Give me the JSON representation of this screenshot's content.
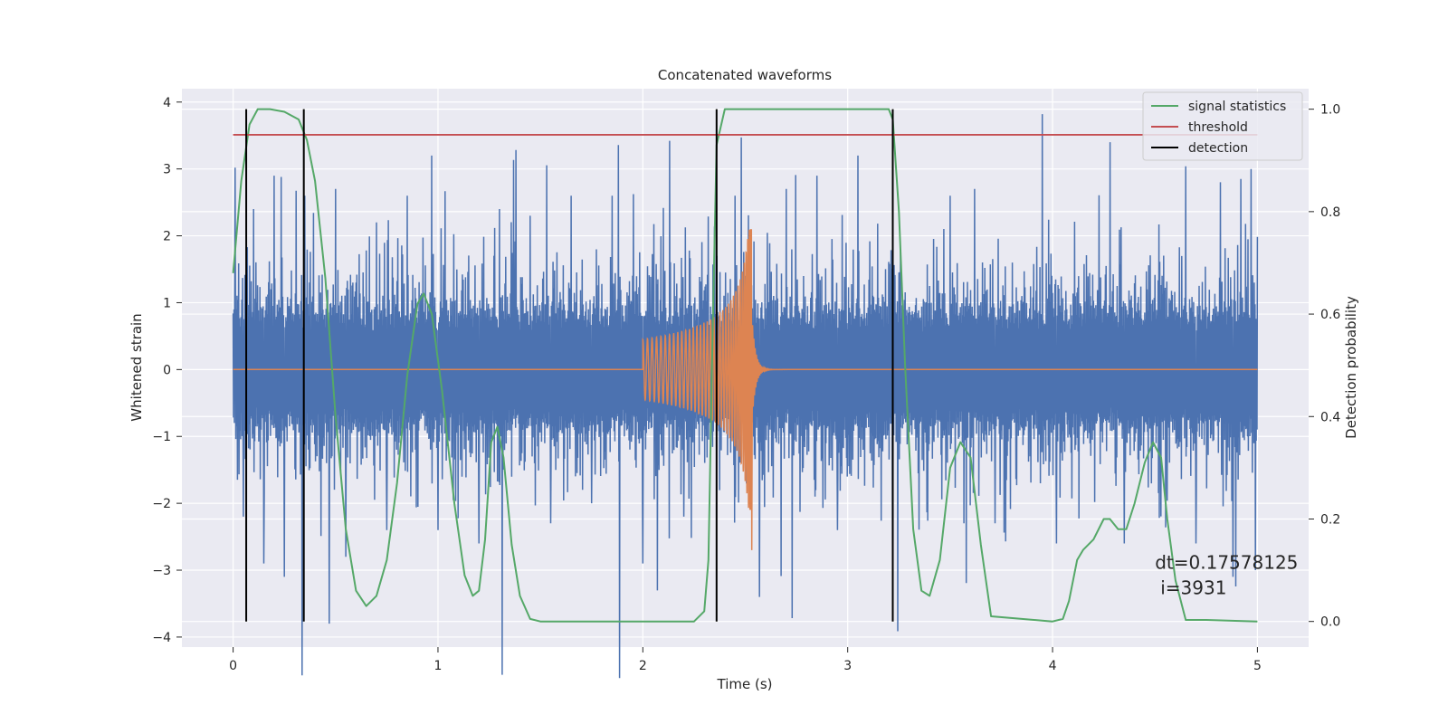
{
  "chart_data": {
    "type": "line",
    "title": "Concatenated waveforms",
    "xlabel": "Time (s)",
    "ylabel": "Whitened strain",
    "y2label": "Detection probability",
    "xlim": [
      -0.25,
      5.25
    ],
    "ylim": [
      -4.15,
      4.2
    ],
    "y2lim": [
      -0.05,
      1.04
    ],
    "xticks": [
      "0",
      "1",
      "2",
      "3",
      "4",
      "5"
    ],
    "xtick_values": [
      0,
      1,
      2,
      3,
      4,
      5
    ],
    "yticks": [
      "−4",
      "−3",
      "−2",
      "−1",
      "0",
      "1",
      "2",
      "3",
      "4"
    ],
    "ytick_values": [
      -4,
      -3,
      -2,
      -1,
      0,
      1,
      2,
      3,
      4
    ],
    "y2ticks": [
      "0.0",
      "0.2",
      "0.4",
      "0.6",
      "0.8",
      "1.0"
    ],
    "y2tick_values": [
      0.0,
      0.2,
      0.4,
      0.6,
      0.8,
      1.0
    ],
    "grid": true,
    "legend": {
      "position": "top-right",
      "entries": [
        {
          "label": "signal statistics",
          "color": "#55a868"
        },
        {
          "label": "threshold",
          "color": "#c44e52"
        },
        {
          "label": "detection",
          "color": "#000000"
        }
      ]
    },
    "annotation": {
      "line1": "dt=0.17578125",
      "line2": "i=3931",
      "x": 4.5,
      "y1": -2.98,
      "y2": -3.36
    },
    "series": [
      {
        "kind": "noise",
        "axis": "left",
        "color": "#4c72b0",
        "x_range": [
          0,
          5
        ],
        "envelope": 1.25,
        "peak_values": [
          [
            0.01,
            3.02
          ],
          [
            0.05,
            -2.2
          ],
          [
            0.1,
            2.4
          ],
          [
            0.15,
            -2.9
          ],
          [
            0.2,
            2.9
          ],
          [
            0.25,
            -3.1
          ],
          [
            0.35,
            2.6
          ],
          [
            0.47,
            -3.8
          ],
          [
            0.5,
            2.7
          ],
          [
            0.55,
            -2.8
          ],
          [
            0.7,
            2.2
          ],
          [
            0.75,
            -2.4
          ],
          [
            0.85,
            2.6
          ],
          [
            0.97,
            3.2
          ],
          [
            1.0,
            -2.4
          ],
          [
            1.2,
            -2.6
          ],
          [
            1.3,
            2.4
          ],
          [
            1.45,
            2.3
          ],
          [
            1.55,
            -2.3
          ],
          [
            1.65,
            2.6
          ],
          [
            1.75,
            -2.0
          ],
          [
            1.85,
            2.6
          ],
          [
            2.0,
            -2.9
          ],
          [
            2.13,
            3.42
          ],
          [
            2.2,
            -2.2
          ],
          [
            2.45,
            2.6
          ],
          [
            2.48,
            3.47
          ],
          [
            2.57,
            -3.4
          ],
          [
            2.7,
            2.7
          ],
          [
            2.85,
            2.9
          ],
          [
            2.95,
            -2.4
          ],
          [
            3.05,
            3.2
          ],
          [
            3.22,
            -3.2
          ],
          [
            3.5,
            2.6
          ],
          [
            3.62,
            2.7
          ],
          [
            3.72,
            -2.3
          ],
          [
            3.95,
            3.82
          ],
          [
            4.02,
            -2.6
          ],
          [
            4.28,
            3.4
          ],
          [
            4.35,
            -2.6
          ],
          [
            4.65,
            3.04
          ],
          [
            4.7,
            -2.6
          ],
          [
            4.82,
            2.8
          ],
          [
            4.88,
            -3.1
          ],
          [
            4.92,
            2.85
          ],
          [
            4.97,
            3.0
          ],
          [
            4.99,
            -3.0
          ]
        ]
      },
      {
        "kind": "chirp",
        "axis": "left",
        "color": "#dd8452",
        "t_start": 2.0,
        "t_merger": 2.53,
        "t_end": 3.0,
        "amp_start": 0.45,
        "amp_peak": 2.1,
        "amp_peak_neg": -2.7,
        "f_start": 38
      },
      {
        "name": "signal statistics",
        "axis": "right",
        "color": "#55a868",
        "x": [
          0,
          0.04,
          0.08,
          0.12,
          0.18,
          0.25,
          0.32,
          0.36,
          0.4,
          0.45,
          0.5,
          0.55,
          0.6,
          0.65,
          0.7,
          0.75,
          0.8,
          0.85,
          0.9,
          0.93,
          0.97,
          1.02,
          1.08,
          1.13,
          1.17,
          1.2,
          1.23,
          1.26,
          1.29,
          1.32,
          1.36,
          1.4,
          1.45,
          1.5,
          2.0,
          2.25,
          2.3,
          2.32,
          2.34,
          2.36,
          2.4,
          2.6,
          3.2,
          3.22,
          3.25,
          3.28,
          3.32,
          3.36,
          3.4,
          3.45,
          3.5,
          3.55,
          3.6,
          3.65,
          3.7,
          4.0,
          4.05,
          4.08,
          4.12,
          4.15,
          4.2,
          4.25,
          4.28,
          4.32,
          4.36,
          4.4,
          4.45,
          4.49,
          4.53,
          4.56,
          4.6,
          4.65,
          4.75,
          5.0
        ],
        "values": [
          0.68,
          0.86,
          0.97,
          1.0,
          1.0,
          0.995,
          0.98,
          0.94,
          0.86,
          0.67,
          0.4,
          0.18,
          0.06,
          0.03,
          0.05,
          0.12,
          0.27,
          0.48,
          0.62,
          0.64,
          0.6,
          0.45,
          0.23,
          0.09,
          0.05,
          0.06,
          0.16,
          0.35,
          0.38,
          0.32,
          0.15,
          0.05,
          0.005,
          0.0,
          0.0,
          0.0,
          0.02,
          0.12,
          0.55,
          0.93,
          1.0,
          1.0,
          1.0,
          0.98,
          0.8,
          0.5,
          0.18,
          0.06,
          0.05,
          0.12,
          0.3,
          0.35,
          0.32,
          0.15,
          0.01,
          0.0,
          0.005,
          0.04,
          0.12,
          0.14,
          0.16,
          0.2,
          0.2,
          0.18,
          0.18,
          0.23,
          0.31,
          0.35,
          0.32,
          0.2,
          0.08,
          0.003,
          0.003,
          0.0
        ]
      },
      {
        "name": "threshold",
        "axis": "right",
        "color": "#c44e52",
        "x": [
          0,
          5
        ],
        "values": [
          0.95,
          0.95
        ]
      },
      {
        "name": "detection",
        "axis": "right",
        "color": "#000000",
        "x": [
          0.064,
          0.345,
          2.36,
          3.22
        ]
      }
    ]
  }
}
